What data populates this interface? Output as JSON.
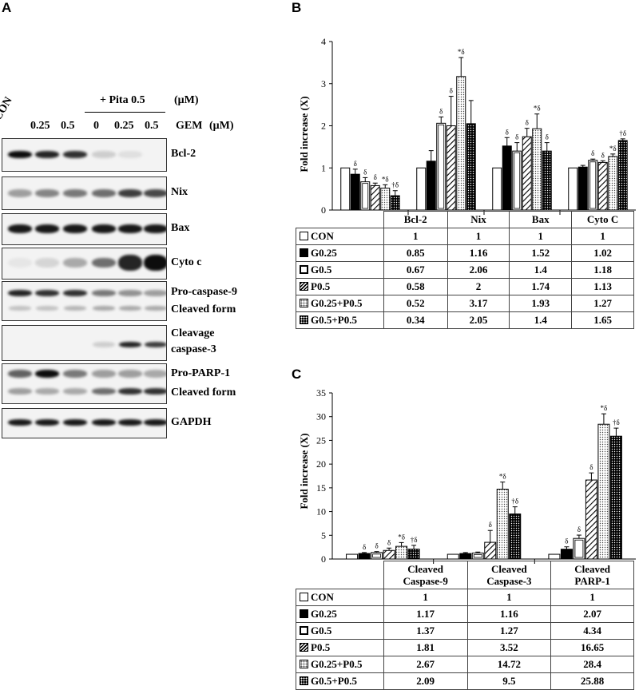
{
  "panel_labels": {
    "a": "A",
    "b": "B",
    "c": "C"
  },
  "blot": {
    "treatment_header": "+ Pita 0.5",
    "treatment_unit": "(μM)",
    "gem_label": "GEM",
    "gem_unit": "(μM)",
    "lane_labels": [
      "CON",
      "0.25",
      "0.5",
      "0",
      "0.25",
      "0.5"
    ],
    "rows": [
      {
        "label": "Bcl-2"
      },
      {
        "label": "Nix"
      },
      {
        "label": "Bax"
      },
      {
        "label": "Cyto c"
      },
      {
        "label": "Pro-caspase-9",
        "label2": "Cleaved form"
      },
      {
        "label": "Cleavage",
        "label2": "caspase-3"
      },
      {
        "label": "Pro-PARP-1",
        "label2": "Cleaved form"
      },
      {
        "label": "GAPDH"
      }
    ]
  },
  "chart_data": [
    {
      "type": "bar",
      "panel": "B",
      "ylabel": "Fold increase (X)",
      "ylim": [
        0,
        4
      ],
      "yticks": [
        "0",
        "1",
        "2",
        "3",
        "4"
      ],
      "categories": [
        "Bcl-2",
        "Nix",
        "Bax",
        "Cyto C"
      ],
      "series": [
        {
          "name": "CON",
          "values": [
            1,
            1,
            1,
            1
          ],
          "errors": [
            0,
            0,
            0,
            0
          ],
          "marks": [
            "",
            "",
            "",
            ""
          ]
        },
        {
          "name": "G0.25",
          "values": [
            0.85,
            1.16,
            1.52,
            1.02
          ],
          "errors": [
            0.12,
            0.25,
            0.2,
            0.04
          ],
          "marks": [
            "δ",
            "",
            "δ",
            ""
          ]
        },
        {
          "name": "G0.5",
          "values": [
            0.67,
            2.06,
            1.4,
            1.18
          ],
          "errors": [
            0.1,
            0.15,
            0.2,
            0.03
          ],
          "marks": [
            "δ",
            "δ",
            "δ",
            "δ"
          ]
        },
        {
          "name": "P0.5",
          "values": [
            0.58,
            2,
            1.74,
            1.13
          ],
          "errors": [
            0.06,
            0.7,
            0.2,
            0.04
          ],
          "marks": [
            "δ",
            "δ",
            "δ",
            "δ"
          ]
        },
        {
          "name": "G0.25+P0.5",
          "values": [
            0.52,
            3.17,
            1.93,
            1.27
          ],
          "errors": [
            0.08,
            0.45,
            0.35,
            0.06
          ],
          "marks": [
            "*δ",
            "*δ",
            "*δ",
            "*δ"
          ]
        },
        {
          "name": "G0.5+P0.5",
          "values": [
            0.34,
            2.05,
            1.4,
            1.65
          ],
          "errors": [
            0.12,
            0.55,
            0.2,
            0.04
          ],
          "marks": [
            "†δ",
            "",
            "δ",
            "†δ"
          ]
        }
      ]
    },
    {
      "type": "bar",
      "panel": "C",
      "ylabel": "Fold increase (X)",
      "ylim": [
        0,
        35
      ],
      "yticks": [
        "0",
        "5",
        "10",
        "15",
        "20",
        "25",
        "30",
        "35"
      ],
      "categories": [
        "Cleaved Caspase-9",
        "Cleaved Caspase-3",
        "Cleaved PARP-1"
      ],
      "category_lines": [
        [
          "Cleaved",
          "Caspase-9"
        ],
        [
          "Cleaved",
          "Caspase-3"
        ],
        [
          "Cleaved",
          "PARP-1"
        ]
      ],
      "series": [
        {
          "name": "CON",
          "values": [
            1,
            1,
            1
          ],
          "errors": [
            0,
            0,
            0
          ],
          "marks": [
            "",
            "",
            ""
          ]
        },
        {
          "name": "G0.25",
          "values": [
            1.17,
            1.16,
            2.07
          ],
          "errors": [
            0.2,
            0.2,
            0.5
          ],
          "marks": [
            "δ",
            "",
            "δ"
          ]
        },
        {
          "name": "G0.5",
          "values": [
            1.37,
            1.27,
            4.34
          ],
          "errors": [
            0.2,
            0.2,
            0.7
          ],
          "marks": [
            "δ",
            "",
            "δ"
          ]
        },
        {
          "name": "P0.5",
          "values": [
            1.81,
            3.52,
            16.65
          ],
          "errors": [
            0.5,
            2.5,
            1.5
          ],
          "marks": [
            "δ",
            "δ",
            "δ"
          ]
        },
        {
          "name": "G0.25+P0.5",
          "values": [
            2.67,
            14.72,
            28.4
          ],
          "errors": [
            0.8,
            1.5,
            2.2
          ],
          "marks": [
            "*δ",
            "*δ",
            "*δ"
          ]
        },
        {
          "name": "G0.5+P0.5",
          "values": [
            2.09,
            9.5,
            25.88
          ],
          "errors": [
            0.8,
            1.5,
            1.7
          ],
          "marks": [
            "†δ",
            "†δ",
            "†δ"
          ]
        }
      ]
    }
  ],
  "table_b": {
    "rows": [
      {
        "label": "CON",
        "values": [
          "1",
          "1",
          "1",
          "1"
        ]
      },
      {
        "label": "G0.25",
        "values": [
          "0.85",
          "1.16",
          "1.52",
          "1.02"
        ]
      },
      {
        "label": "G0.5",
        "values": [
          "0.67",
          "2.06",
          "1.4",
          "1.18"
        ]
      },
      {
        "label": "P0.5",
        "values": [
          "0.58",
          "2",
          "1.74",
          "1.13"
        ]
      },
      {
        "label": "G0.25+P0.5",
        "values": [
          "0.52",
          "3.17",
          "1.93",
          "1.27"
        ]
      },
      {
        "label": "G0.5+P0.5",
        "values": [
          "0.34",
          "2.05",
          "1.4",
          "1.65"
        ]
      }
    ]
  },
  "table_c": {
    "rows": [
      {
        "label": "CON",
        "values": [
          "1",
          "1",
          "1"
        ]
      },
      {
        "label": "G0.25",
        "values": [
          "1.17",
          "1.16",
          "2.07"
        ]
      },
      {
        "label": "G0.5",
        "values": [
          "1.37",
          "1.27",
          "4.34"
        ]
      },
      {
        "label": "P0.5",
        "values": [
          "1.81",
          "3.52",
          "16.65"
        ]
      },
      {
        "label": "G0.25+P0.5",
        "values": [
          "2.67",
          "14.72",
          "28.4"
        ]
      },
      {
        "label": "G0.5+P0.5",
        "values": [
          "2.09",
          "9.5",
          "25.88"
        ]
      }
    ]
  }
}
